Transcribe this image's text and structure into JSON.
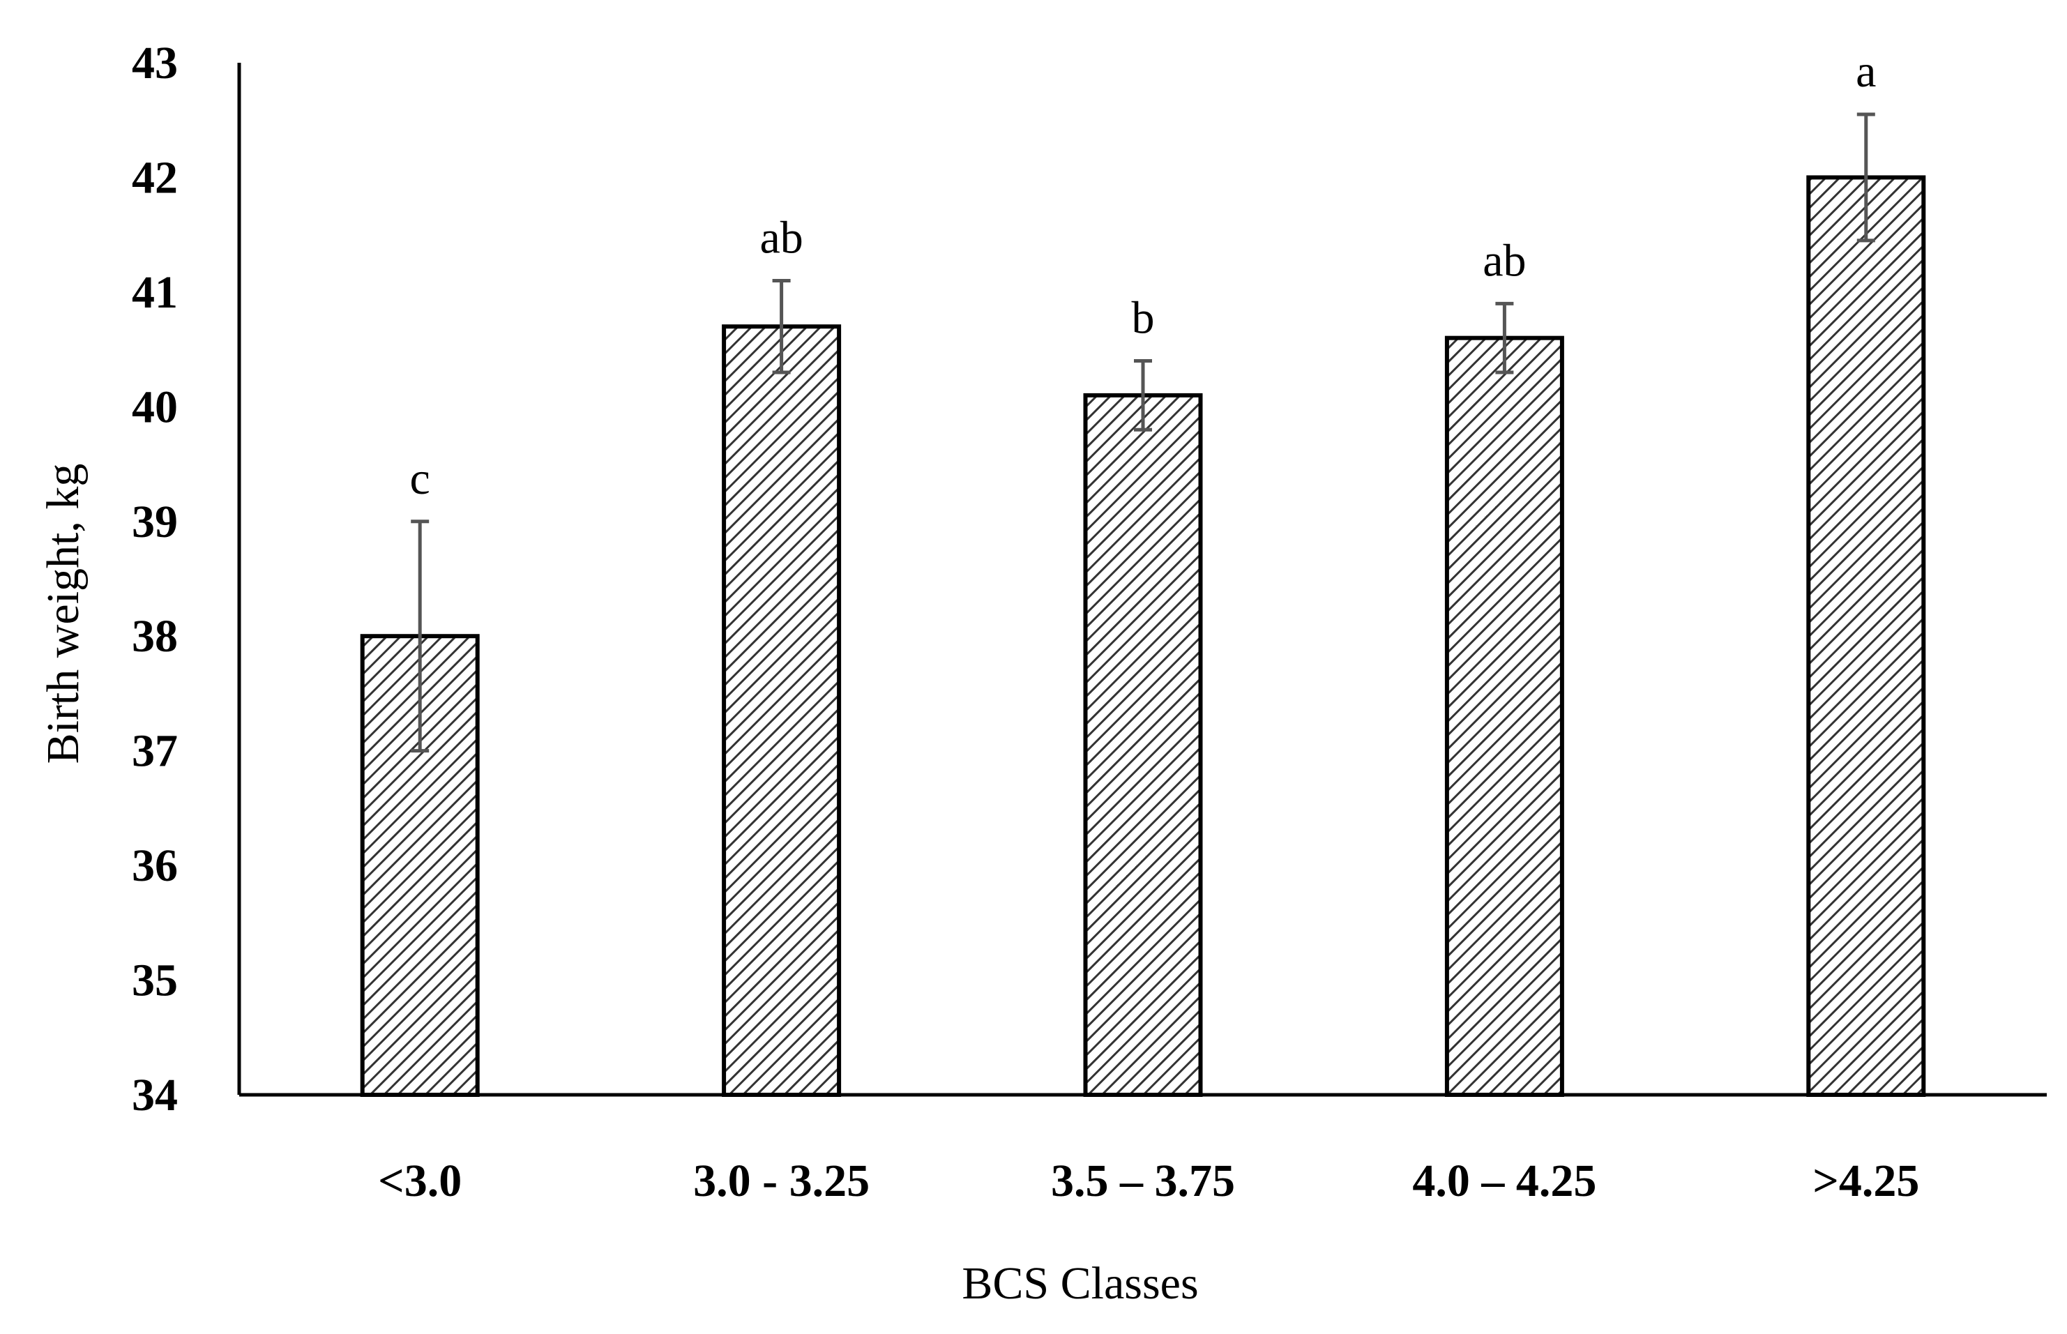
{
  "chart_data": {
    "type": "bar",
    "title": "",
    "xlabel": "BCS Classes",
    "ylabel": "Birth weight, kg",
    "ylim": [
      34,
      43
    ],
    "yticks": [
      34,
      35,
      36,
      37,
      38,
      39,
      40,
      41,
      42,
      43
    ],
    "categories": [
      "<3.0",
      "3.0 - 3.25",
      "3.5 – 3.75",
      "4.0 – 4.25",
      ">4.25"
    ],
    "values": [
      38.0,
      40.7,
      40.1,
      40.6,
      42.0
    ],
    "error_bars": [
      1.0,
      0.4,
      0.3,
      0.3,
      0.55
    ],
    "significance_letters": [
      "c",
      "ab",
      "b",
      "ab",
      "a"
    ],
    "bar_pattern": "diagonal-hatch",
    "grid": false,
    "legend": "none"
  }
}
